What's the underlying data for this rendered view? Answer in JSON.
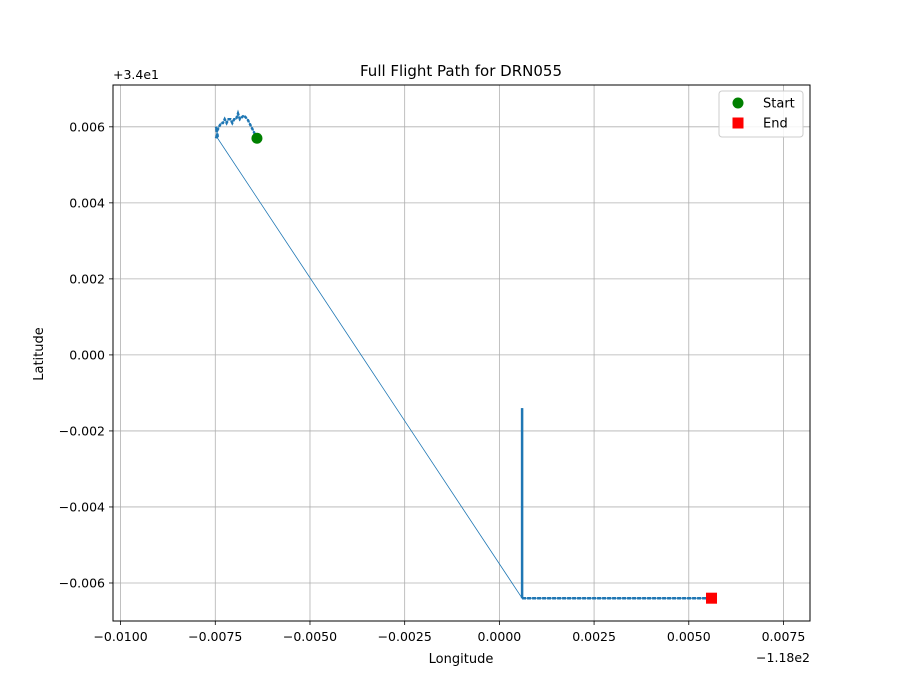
{
  "chart_data": {
    "type": "line",
    "title": "Full Flight Path for DRN055",
    "xlabel": "Longitude",
    "ylabel": "Latitude",
    "x_offset_label": "−1.18e2",
    "y_offset_label": "+3.4e1",
    "xlim": [
      -0.0102,
      0.0082
    ],
    "ylim": [
      -0.007,
      0.0071
    ],
    "x_ticks": [
      -0.01,
      -0.0075,
      -0.005,
      -0.0025,
      0.0,
      0.0025,
      0.005,
      0.0075
    ],
    "x_tick_labels": [
      "−0.0100",
      "−0.0075",
      "−0.0050",
      "−0.0025",
      "0.0000",
      "0.0025",
      "0.0050",
      "0.0075"
    ],
    "y_ticks": [
      -0.006,
      -0.004,
      -0.002,
      0.0,
      0.002,
      0.004,
      0.006
    ],
    "y_tick_labels": [
      "−0.006",
      "−0.004",
      "−0.002",
      "0.000",
      "0.002",
      "0.004",
      "0.006"
    ],
    "grid": true,
    "legend_position": "top-right",
    "series": [
      {
        "color": "#1f77b4",
        "x": [
          -0.0064,
          -0.00655,
          -0.00665,
          -0.00675,
          -0.00685,
          -0.0069,
          -0.00695,
          -0.007,
          -0.00705,
          -0.0071,
          -0.00715,
          -0.0072,
          -0.00725,
          -0.0073,
          -0.00735,
          -0.0074,
          -0.00745,
          -0.00748,
          -0.00745,
          -0.00748,
          -0.00744,
          -0.00744,
          0.0006,
          0.0006,
          0.0006,
          0.0006,
          0.0015,
          0.003,
          0.0045,
          0.0056
        ],
        "y": [
          0.0057,
          0.006,
          0.0062,
          0.0063,
          0.0062,
          0.00635,
          0.0062,
          0.0062,
          0.0061,
          0.0062,
          0.0062,
          0.0061,
          0.0062,
          0.0061,
          0.0061,
          0.006,
          0.0059,
          0.006,
          0.0058,
          0.0057,
          0.0058,
          0.0057,
          -0.0064,
          -0.0014,
          -0.0064,
          -0.0064,
          -0.0064,
          -0.0064,
          -0.0064,
          -0.0064
        ]
      }
    ],
    "legend": [
      {
        "label": "Start",
        "marker": "circle",
        "color": "#008000"
      },
      {
        "label": "End",
        "marker": "square",
        "color": "#ff0000"
      }
    ],
    "start_point": {
      "x": -0.0064,
      "y": 0.0057
    },
    "end_point": {
      "x": 0.0056,
      "y": -0.0064
    }
  }
}
